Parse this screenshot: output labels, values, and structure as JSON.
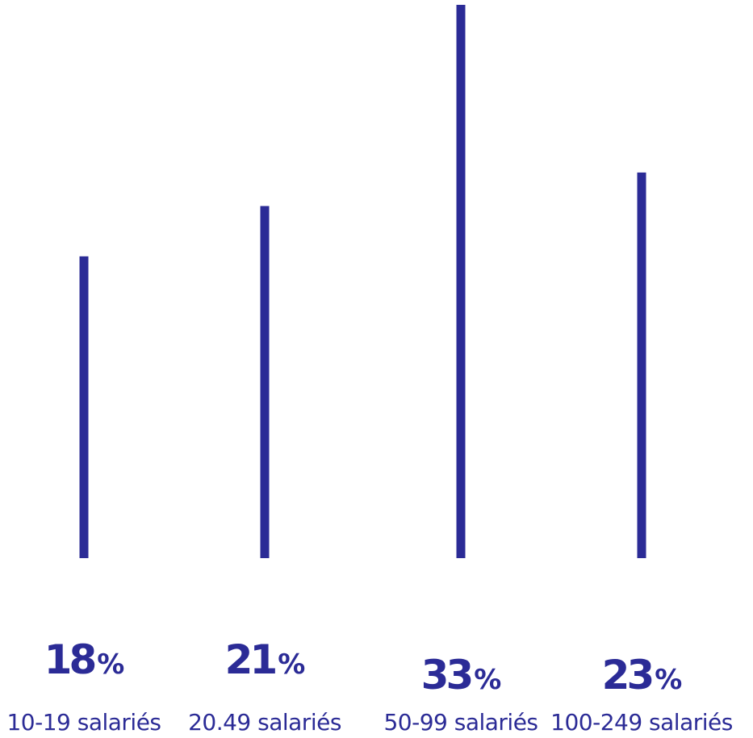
{
  "chart_data": {
    "type": "bar",
    "categories": [
      "10-19 salariés",
      "20.49 salariés",
      "50-99 salariés",
      "100-249 salariés"
    ],
    "values": [
      18,
      21,
      33,
      23
    ],
    "value_labels": [
      "18",
      "21",
      "33",
      "23"
    ],
    "unit": "%",
    "title": "",
    "xlabel": "",
    "ylabel": "",
    "ylim": [
      0,
      33
    ],
    "grid": false,
    "legend": "none",
    "colors": {
      "bar": "#2b2b96",
      "value_text": "#2b2b96",
      "category_text": "#2b2b96"
    }
  }
}
